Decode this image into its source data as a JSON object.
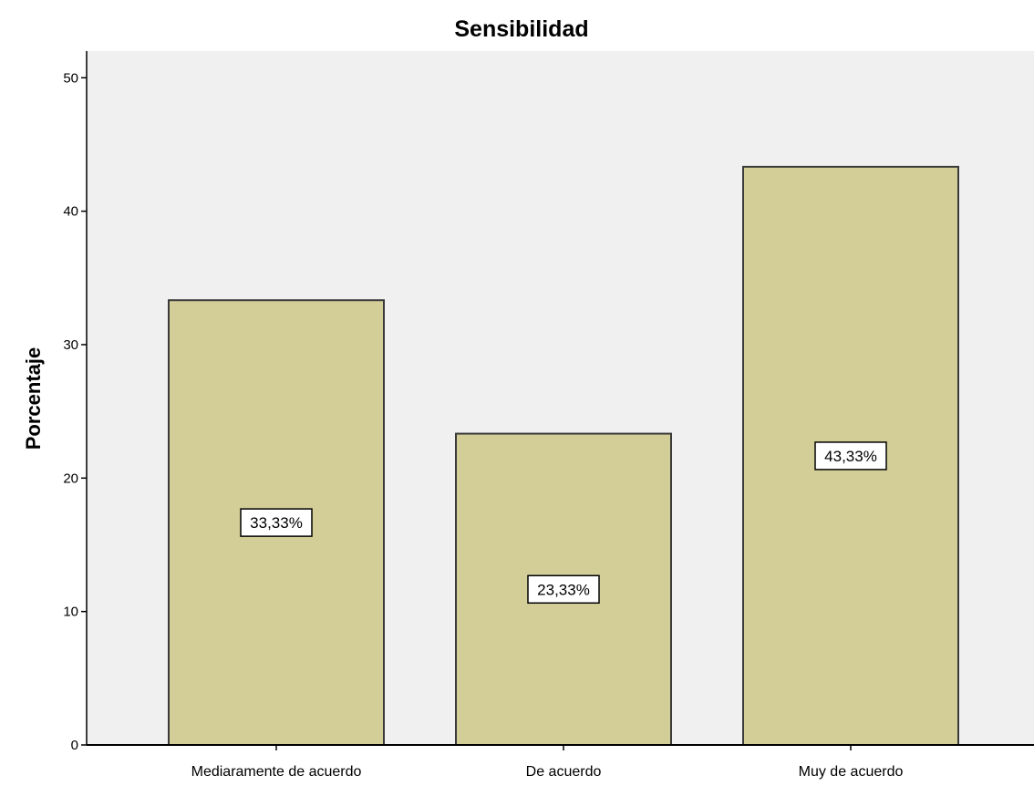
{
  "chart_data": {
    "type": "bar",
    "title": "Sensibilidad",
    "xlabel": "",
    "ylabel": "Porcentaje",
    "categories": [
      "Mediaramente de acuerdo",
      "De acuerdo",
      "Muy de acuerdo"
    ],
    "values": [
      33.33,
      23.33,
      43.33
    ],
    "data_labels": [
      "33,33%",
      "23,33%",
      "43,33%"
    ],
    "ylim": [
      0,
      52
    ],
    "yticks": [
      0,
      10,
      20,
      30,
      40,
      50
    ],
    "ytick_labels": [
      "0",
      "10",
      "20",
      "30",
      "40",
      "50"
    ],
    "grid": false,
    "legend": "none",
    "colors": {
      "plot_background": "#f0f0f0",
      "bar_fill": "#d3ce97",
      "bar_stroke": "#3a3a3a",
      "axis": "#000000",
      "label_box": "#ffffff"
    }
  }
}
